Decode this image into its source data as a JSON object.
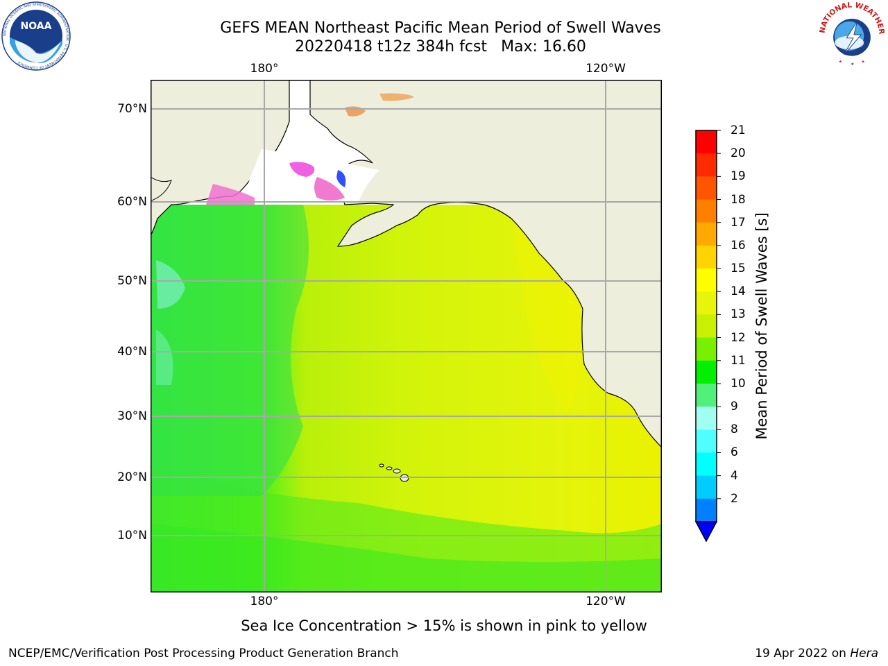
{
  "header": {
    "title_line1": "GEFS MEAN Northeast Pacific Mean Period of Swell Waves",
    "title_line2": "20220418 t12z 384h fcst",
    "max_text": "Max: 16.60"
  },
  "logos": {
    "left": "NOAA",
    "left_ring_text": "NATIONAL OCEANIC AND ATMOSPHERIC ADMINISTRATION · U.S. DEPARTMENT OF COMMERCE",
    "right_ring_text": "NATIONAL WEATHER SERVICE"
  },
  "map": {
    "lon_labels_top": [
      "180°",
      "120°W"
    ],
    "lon_labels_bottom": [
      "180°",
      "120°W"
    ],
    "lat_labels": [
      "70°N",
      "60°N",
      "50°N",
      "40°N",
      "30°N",
      "20°N",
      "10°N"
    ],
    "ocean_color": "#d4f40a",
    "land_color": "#eeeedd"
  },
  "colorbar": {
    "label": "Mean Period of Swell Waves [s]",
    "ticks": [
      "21",
      "20",
      "19",
      "18",
      "17",
      "16",
      "15",
      "14",
      "13",
      "12",
      "11",
      "10",
      "9",
      "8",
      "6",
      "4",
      "2"
    ],
    "colors_top_to_bottom": [
      "#ff0000",
      "#ff2a00",
      "#ff5500",
      "#ff7f00",
      "#ffaa00",
      "#ffd400",
      "#ffff00",
      "#e6f50a",
      "#c8f000",
      "#78f000",
      "#00f000",
      "#50f07a",
      "#a0fff0",
      "#50ffff",
      "#00ffff",
      "#00ccff",
      "#0080ff"
    ],
    "extend_color": "#0000ff"
  },
  "note": "Sea Ice Concentration > 15% is shown in pink to yellow",
  "footer": {
    "left": "NCEP/EMC/Verification Post Processing Product Generation Branch",
    "right_date": "19 Apr 2022 on",
    "right_host": "Hera"
  }
}
